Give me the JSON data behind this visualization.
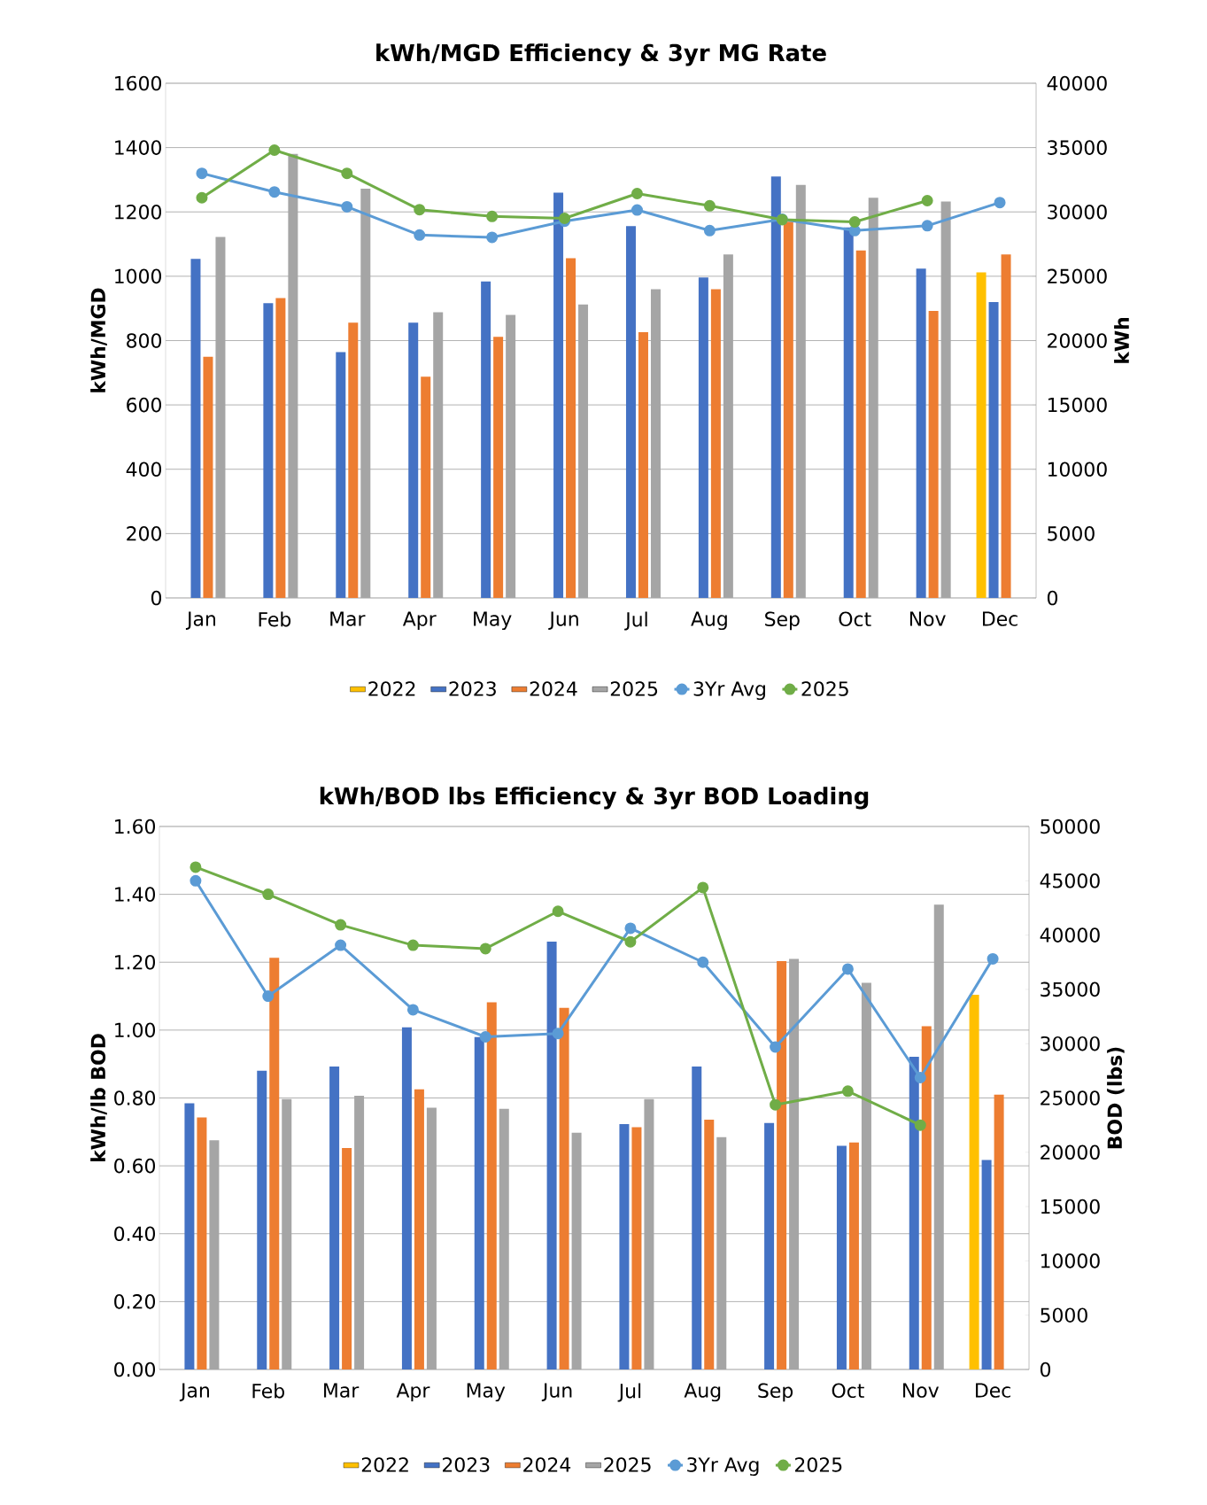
{
  "chart_data": [
    {
      "type": "bar",
      "title": "kWh/MGD Efficiency & 3yr MG Rate",
      "ylabel": "kWh/MGD",
      "y2label": "kWh",
      "categories": [
        "Jan",
        "Feb",
        "Mar",
        "Apr",
        "May",
        "Jun",
        "Jul",
        "Aug",
        "Sep",
        "Oct",
        "Nov",
        "Dec"
      ],
      "ylim": [
        0,
        1600
      ],
      "yticks": [
        0,
        200,
        400,
        600,
        800,
        1000,
        1200,
        1400,
        1600
      ],
      "y2lim": [
        0,
        40000
      ],
      "y2ticks": [
        0,
        5000,
        10000,
        15000,
        20000,
        25000,
        30000,
        35000,
        40000
      ],
      "grid": "y",
      "legend": "bottom",
      "series": [
        {
          "name": "2022",
          "axis": "y2",
          "color": "#ffc000",
          "values": [
            null,
            null,
            null,
            null,
            null,
            null,
            null,
            null,
            null,
            null,
            null,
            25300
          ]
        },
        {
          "name": "2023",
          "axis": "y2",
          "color": "#4472c4",
          "values": [
            26350,
            22900,
            19100,
            21400,
            24600,
            31500,
            28900,
            24900,
            32750,
            28800,
            25600,
            23000
          ]
        },
        {
          "name": "2024",
          "axis": "y2",
          "color": "#ed7d31",
          "values": [
            18750,
            23300,
            21400,
            17200,
            20300,
            26400,
            20650,
            24000,
            29250,
            27000,
            22300,
            26700
          ]
        },
        {
          "name": "2025",
          "axis": "y2",
          "color": "#a5a5a5",
          "values": [
            28050,
            34500,
            31800,
            22200,
            22000,
            22800,
            24000,
            26700,
            32100,
            31100,
            30800,
            null
          ]
        },
        {
          "name": "3Yr Avg",
          "type": "line",
          "marker": "circle",
          "color": "#5b9bd5",
          "values": [
            1320,
            1262,
            1216,
            1128,
            1121,
            1171,
            1206,
            1142,
            1177,
            1142,
            1157,
            1229
          ]
        },
        {
          "name": "2025",
          "type": "line",
          "marker": "circle",
          "color": "#70ad47",
          "values": [
            1244,
            1392,
            1320,
            1207,
            1186,
            1180,
            1257,
            1219,
            1176,
            1169,
            1235,
            null
          ]
        }
      ]
    },
    {
      "type": "bar",
      "title": "kWh/BOD lbs Efficiency & 3yr BOD Loading",
      "ylabel": "kWh/lb BOD",
      "y2label": "BOD (lbs)",
      "categories": [
        "Jan",
        "Feb",
        "Mar",
        "Apr",
        "May",
        "Jun",
        "Jul",
        "Aug",
        "Sep",
        "Oct",
        "Nov",
        "Dec"
      ],
      "ylim": [
        0,
        1.6
      ],
      "yticks": [
        {
          "value": 0,
          "label": "0.00"
        },
        {
          "value": 0.2,
          "label": "0.20"
        },
        {
          "value": 0.4,
          "label": "0.40"
        },
        {
          "value": 0.6,
          "label": "0.60"
        },
        {
          "value": 0.8,
          "label": "0.80"
        },
        {
          "value": 1,
          "label": "1.00"
        },
        {
          "value": 1.2,
          "label": "1.20"
        },
        {
          "value": 1.4,
          "label": "1.40"
        },
        {
          "value": 1.6,
          "label": "1.60"
        }
      ],
      "y2lim": [
        0,
        50000
      ],
      "y2ticks": [
        0,
        5000,
        10000,
        15000,
        20000,
        25000,
        30000,
        35000,
        40000,
        45000,
        50000
      ],
      "grid": "y",
      "legend": "bottom",
      "series": [
        {
          "name": "2022",
          "axis": "y2",
          "color": "#ffc000",
          "values": [
            null,
            null,
            null,
            null,
            null,
            null,
            null,
            null,
            null,
            null,
            null,
            34500
          ]
        },
        {
          "name": "2023",
          "axis": "y2",
          "color": "#4472c4",
          "values": [
            24500,
            27500,
            27900,
            31500,
            30600,
            39400,
            22600,
            27900,
            22700,
            20600,
            28800,
            19300
          ]
        },
        {
          "name": "2024",
          "axis": "y2",
          "color": "#ed7d31",
          "values": [
            23200,
            37900,
            20400,
            25800,
            33800,
            33300,
            22300,
            23000,
            37600,
            20900,
            31600,
            25300
          ]
        },
        {
          "name": "2025",
          "axis": "y2",
          "color": "#a5a5a5",
          "values": [
            21100,
            24900,
            25200,
            24100,
            24000,
            21800,
            24900,
            21400,
            37800,
            35600,
            42800,
            null
          ]
        },
        {
          "name": "3Yr Avg",
          "type": "line",
          "marker": "circle",
          "color": "#5b9bd5",
          "values": [
            1.44,
            1.1,
            1.25,
            1.06,
            0.98,
            0.99,
            1.3,
            1.2,
            0.95,
            1.18,
            0.86,
            1.21
          ]
        },
        {
          "name": "2025",
          "type": "line",
          "marker": "circle",
          "color": "#70ad47",
          "values": [
            1.48,
            1.4,
            1.31,
            1.25,
            1.24,
            1.35,
            1.26,
            1.42,
            0.78,
            0.82,
            0.72,
            null
          ]
        }
      ]
    }
  ]
}
